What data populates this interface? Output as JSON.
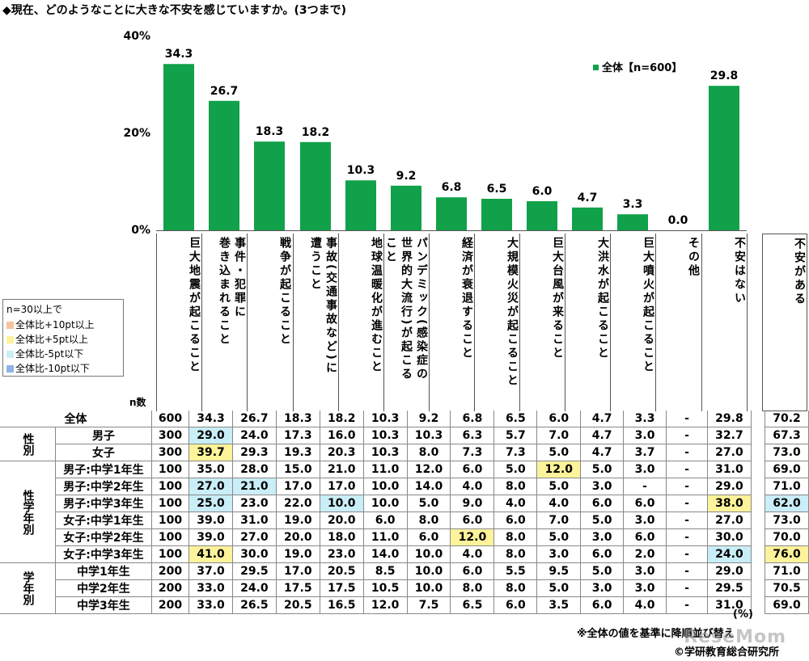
{
  "title": "◆現在、どのようなことに大きな不安を感じていますか。(3つまで)",
  "legend": {
    "label": "全体【n=600】",
    "color": "#11a14a"
  },
  "highlight_legend": {
    "header": "n=30以上で",
    "items": [
      {
        "label": "全体比+10pt以上",
        "color": "#f7c39b"
      },
      {
        "label": "全体比+5pt以上",
        "color": "#fdf39a"
      },
      {
        "label": "全体比-5pt以下",
        "color": "#c9eef7"
      },
      {
        "label": "全体比-10pt以下",
        "color": "#8fb4e3"
      }
    ]
  },
  "n_label": "n数",
  "unit": "(%)",
  "note": "※全体の値を基準に降順並び替え",
  "copyright": "©学研教育総合研究所",
  "watermark": "ReseMom",
  "chart_data": {
    "type": "bar",
    "ylim": [
      0,
      40
    ],
    "yticks": [
      "0%",
      "20%",
      "40%"
    ],
    "categories": [
      "巨大地震が起こること",
      "事件・犯罪に巻き込まれること",
      "戦争が起こること",
      "事故(交通事故など)に遭うこと",
      "地球温暖化が進むこと",
      "パンデミック(感染症の世界的大流行)が起こること",
      "経済が衰退すること",
      "大規模火災が起こること",
      "巨大台風が来ること",
      "大洪水が起こること",
      "巨大噴火が起こること",
      "その他",
      "不安はない"
    ],
    "category_lines": [
      "巨大地震が起こること",
      "事件・犯罪に\n巻き込まれること",
      "戦争が起こること",
      "事故(交通事故など)に\n遭うこと",
      "地球温暖化が進むこと",
      "パンデミック(感染症の\n世界的大流行)が起こる\nこと",
      "経済が衰退すること",
      "大規模火災が起こること",
      "巨大台風が来ること",
      "大洪水が起こること",
      "巨大噴火が起こること",
      "その他",
      "不安はない"
    ],
    "series": [
      {
        "name": "全体【n=600】",
        "values": [
          34.3,
          26.7,
          18.3,
          18.2,
          10.3,
          9.2,
          6.8,
          6.5,
          6.0,
          4.7,
          3.3,
          0.0,
          29.8
        ]
      }
    ],
    "extra_column": "不安がある",
    "table_rows": [
      {
        "group": "",
        "label": "全体",
        "n": "600",
        "values": [
          "34.3",
          "26.7",
          "18.3",
          "18.2",
          "10.3",
          "9.2",
          "6.8",
          "6.5",
          "6.0",
          "4.7",
          "3.3",
          "-",
          "29.8",
          "70.2"
        ],
        "hl": []
      },
      {
        "group": "性別",
        "label": "男子",
        "n": "300",
        "values": [
          "29.0",
          "24.0",
          "17.3",
          "16.0",
          "10.3",
          "10.3",
          "6.3",
          "5.7",
          "7.0",
          "4.7",
          "3.0",
          "-",
          "32.7",
          "67.3"
        ],
        "hl": [
          [
            0,
            "-5"
          ]
        ]
      },
      {
        "group": "性別",
        "label": "女子",
        "n": "300",
        "values": [
          "39.7",
          "29.3",
          "19.3",
          "20.3",
          "10.3",
          "8.0",
          "7.3",
          "7.3",
          "5.0",
          "4.7",
          "3.7",
          "-",
          "27.0",
          "73.0"
        ],
        "hl": [
          [
            0,
            "+5"
          ]
        ]
      },
      {
        "group": "性学年別",
        "label": "男子:中学1年生",
        "n": "100",
        "values": [
          "35.0",
          "28.0",
          "15.0",
          "21.0",
          "11.0",
          "12.0",
          "6.0",
          "5.0",
          "12.0",
          "5.0",
          "3.0",
          "-",
          "31.0",
          "69.0"
        ],
        "hl": [
          [
            8,
            "+5"
          ]
        ]
      },
      {
        "group": "性学年別",
        "label": "男子:中学2年生",
        "n": "100",
        "values": [
          "27.0",
          "21.0",
          "17.0",
          "17.0",
          "10.0",
          "14.0",
          "4.0",
          "8.0",
          "5.0",
          "3.0",
          "-",
          "-",
          "29.0",
          "71.0"
        ],
        "hl": [
          [
            0,
            "-5"
          ],
          [
            1,
            "-5"
          ]
        ]
      },
      {
        "group": "性学年別",
        "label": "男子:中学3年生",
        "n": "100",
        "values": [
          "25.0",
          "23.0",
          "22.0",
          "10.0",
          "10.0",
          "5.0",
          "9.0",
          "4.0",
          "4.0",
          "6.0",
          "6.0",
          "-",
          "38.0",
          "62.0"
        ],
        "hl": [
          [
            0,
            "-5"
          ],
          [
            3,
            "-5"
          ],
          [
            12,
            "+5"
          ],
          [
            13,
            "-5"
          ]
        ]
      },
      {
        "group": "性学年別",
        "label": "女子:中学1年生",
        "n": "100",
        "values": [
          "39.0",
          "31.0",
          "19.0",
          "20.0",
          "6.0",
          "8.0",
          "6.0",
          "6.0",
          "7.0",
          "5.0",
          "3.0",
          "-",
          "27.0",
          "73.0"
        ],
        "hl": []
      },
      {
        "group": "性学年別",
        "label": "女子:中学2年生",
        "n": "100",
        "values": [
          "39.0",
          "27.0",
          "20.0",
          "18.0",
          "11.0",
          "6.0",
          "12.0",
          "8.0",
          "5.0",
          "3.0",
          "6.0",
          "-",
          "30.0",
          "70.0"
        ],
        "hl": [
          [
            6,
            "+5"
          ]
        ]
      },
      {
        "group": "性学年別",
        "label": "女子:中学3年生",
        "n": "100",
        "values": [
          "41.0",
          "30.0",
          "19.0",
          "23.0",
          "14.0",
          "10.0",
          "4.0",
          "8.0",
          "3.0",
          "6.0",
          "2.0",
          "-",
          "24.0",
          "76.0"
        ],
        "hl": [
          [
            0,
            "+5"
          ],
          [
            12,
            "-5"
          ],
          [
            13,
            "+5"
          ]
        ]
      },
      {
        "group": "学年別",
        "label": "中学1年生",
        "n": "200",
        "values": [
          "37.0",
          "29.5",
          "17.0",
          "20.5",
          "8.5",
          "10.0",
          "6.0",
          "5.5",
          "9.5",
          "5.0",
          "3.0",
          "-",
          "29.0",
          "71.0"
        ],
        "hl": []
      },
      {
        "group": "学年別",
        "label": "中学2年生",
        "n": "200",
        "values": [
          "33.0",
          "24.0",
          "17.5",
          "17.5",
          "10.5",
          "10.0",
          "8.0",
          "8.0",
          "5.0",
          "3.0",
          "3.0",
          "-",
          "29.5",
          "70.5"
        ],
        "hl": []
      },
      {
        "group": "学年別",
        "label": "中学3年生",
        "n": "200",
        "values": [
          "33.0",
          "26.5",
          "20.5",
          "16.5",
          "12.0",
          "7.5",
          "6.5",
          "6.0",
          "3.5",
          "6.0",
          "4.0",
          "-",
          "31.0",
          "69.0"
        ],
        "hl": []
      }
    ]
  }
}
